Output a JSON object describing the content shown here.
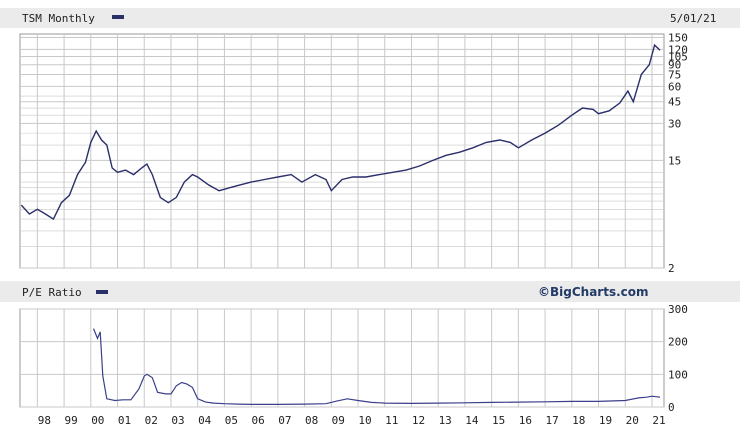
{
  "colors": {
    "header_band": "#ebebeb",
    "grid": "#c8c8c8",
    "price_line": "#2a2f6a",
    "pe_line": "#3b3f8a",
    "panel_border": "#9a9a9a"
  },
  "chart_data": [
    {
      "type": "line",
      "title": "TSM Monthly",
      "date_label": "5/01/21",
      "y_scale": "log",
      "ylim": [
        2,
        160
      ],
      "y_ticks": [
        "150",
        "120",
        "105",
        "90",
        "75",
        "60",
        "45",
        "30",
        "15",
        "2"
      ],
      "y_tick_values": [
        150,
        120,
        105,
        90,
        75,
        60,
        45,
        30,
        15,
        2
      ],
      "x_ticks": [
        "98",
        "99",
        "00",
        "01",
        "02",
        "03",
        "04",
        "05",
        "06",
        "07",
        "08",
        "09",
        "10",
        "11",
        "12",
        "13",
        "14",
        "15",
        "16",
        "17",
        "18",
        "19",
        "20",
        "21"
      ],
      "grid": true,
      "series": [
        {
          "x": [
            1997.4,
            1997.7,
            1998.0,
            1998.3,
            1998.6,
            1998.9,
            1999.2,
            1999.5,
            1999.8,
            2000.0,
            2000.2,
            2000.4,
            2000.6,
            2000.8,
            2001.0,
            2001.3,
            2001.6,
            2001.9,
            2002.1,
            2002.3,
            2002.6,
            2002.9,
            2003.2,
            2003.5,
            2003.8,
            2004.0,
            2004.4,
            2004.8,
            2005.2,
            2005.6,
            2006.0,
            2006.5,
            2007.0,
            2007.5,
            2007.9,
            2008.4,
            2008.8,
            2009.0,
            2009.4,
            2009.8,
            2010.3,
            2010.8,
            2011.3,
            2011.8,
            2012.3,
            2012.8,
            2013.3,
            2013.8,
            2014.3,
            2014.8,
            2015.3,
            2015.7,
            2016.0,
            2016.5,
            2017.0,
            2017.5,
            2018.0,
            2018.4,
            2018.8,
            2019.0,
            2019.4,
            2019.8,
            2020.1,
            2020.3,
            2020.6,
            2020.9,
            2021.1,
            2021.3
          ],
          "y": [
            6.5,
            5.5,
            6.0,
            5.5,
            5.0,
            6.8,
            7.8,
            11.5,
            14.5,
            21.0,
            26.0,
            22.0,
            20.0,
            13.0,
            12.0,
            12.5,
            11.5,
            13.0,
            14.0,
            11.5,
            7.5,
            6.8,
            7.5,
            10.0,
            11.5,
            11.0,
            9.5,
            8.5,
            9.0,
            9.5,
            10.0,
            10.5,
            11.0,
            11.5,
            10.0,
            11.5,
            10.5,
            8.5,
            10.5,
            11.0,
            11.0,
            11.5,
            12.0,
            12.5,
            13.5,
            15.0,
            16.5,
            17.5,
            19.0,
            21.0,
            22.0,
            21.0,
            19.0,
            22.0,
            25.0,
            29.0,
            35.0,
            40.0,
            39.0,
            36.0,
            38.0,
            44.0,
            55.0,
            45.0,
            75.0,
            90.0,
            130.0,
            118.0
          ]
        }
      ]
    },
    {
      "type": "line",
      "title": "P/E Ratio",
      "brand": "©BigCharts.com",
      "ylim": [
        0,
        300
      ],
      "y_ticks": [
        "300",
        "200",
        "100",
        "0"
      ],
      "y_tick_values": [
        300,
        200,
        100,
        0
      ],
      "grid": true,
      "series": [
        {
          "x": [
            2000.1,
            2000.25,
            2000.35,
            2000.45,
            2000.6,
            2000.9,
            2001.2,
            2001.5,
            2001.8,
            2002.0,
            2002.1,
            2002.3,
            2002.5,
            2002.8,
            2003.0,
            2003.2,
            2003.4,
            2003.6,
            2003.8,
            2004.0,
            2004.3,
            2004.6,
            2005.0,
            2005.5,
            2006.0,
            2007.0,
            2008.0,
            2008.8,
            2009.2,
            2009.6,
            2010.0,
            2010.5,
            2011.0,
            2012.0,
            2013.0,
            2014.0,
            2015.0,
            2016.0,
            2017.0,
            2018.0,
            2019.0,
            2020.0,
            2020.5,
            2020.8,
            2021.0,
            2021.3
          ],
          "y": [
            240,
            210,
            230,
            95,
            25,
            20,
            22,
            22,
            55,
            95,
            100,
            90,
            45,
            40,
            40,
            65,
            75,
            70,
            60,
            25,
            15,
            12,
            10,
            9,
            8,
            8,
            9,
            10,
            18,
            25,
            20,
            14,
            12,
            11,
            12,
            13,
            14,
            15,
            16,
            17,
            17,
            20,
            28,
            30,
            33,
            30
          ]
        }
      ]
    }
  ]
}
